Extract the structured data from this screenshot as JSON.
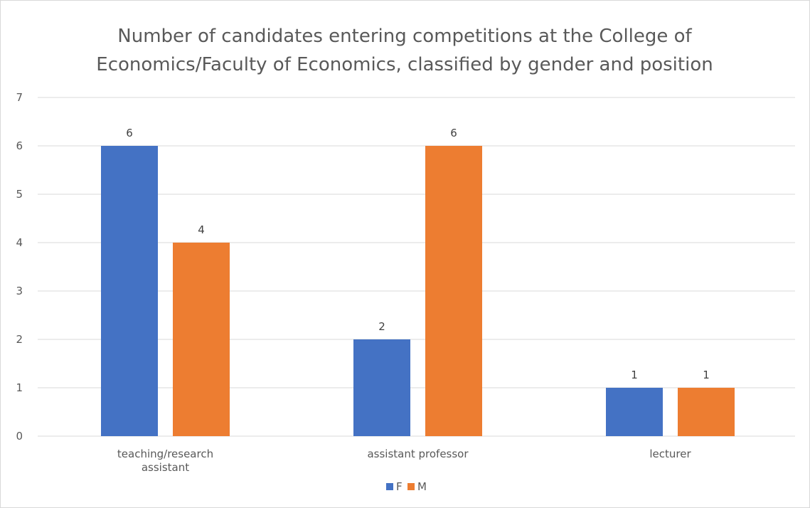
{
  "chart_data": {
    "type": "bar",
    "title_lines": [
      "Number of candidates entering competitions at the College of",
      "Economics/Faculty of Economics, classified by gender and position"
    ],
    "categories": [
      [
        "teaching/research",
        "assistant"
      ],
      [
        "assistant professor"
      ],
      [
        "lecturer"
      ]
    ],
    "series": [
      {
        "name": "F",
        "color": "#4472c4",
        "values": [
          6,
          2,
          1
        ]
      },
      {
        "name": "M",
        "color": "#ed7d31",
        "values": [
          4,
          6,
          1
        ]
      }
    ],
    "ylim": [
      0,
      7
    ],
    "yticks": [
      0,
      1,
      2,
      3,
      4,
      5,
      6,
      7
    ],
    "grid": true,
    "gridline_color": "#d9d9d9",
    "data_labels": true,
    "legend_position": "bottom"
  }
}
